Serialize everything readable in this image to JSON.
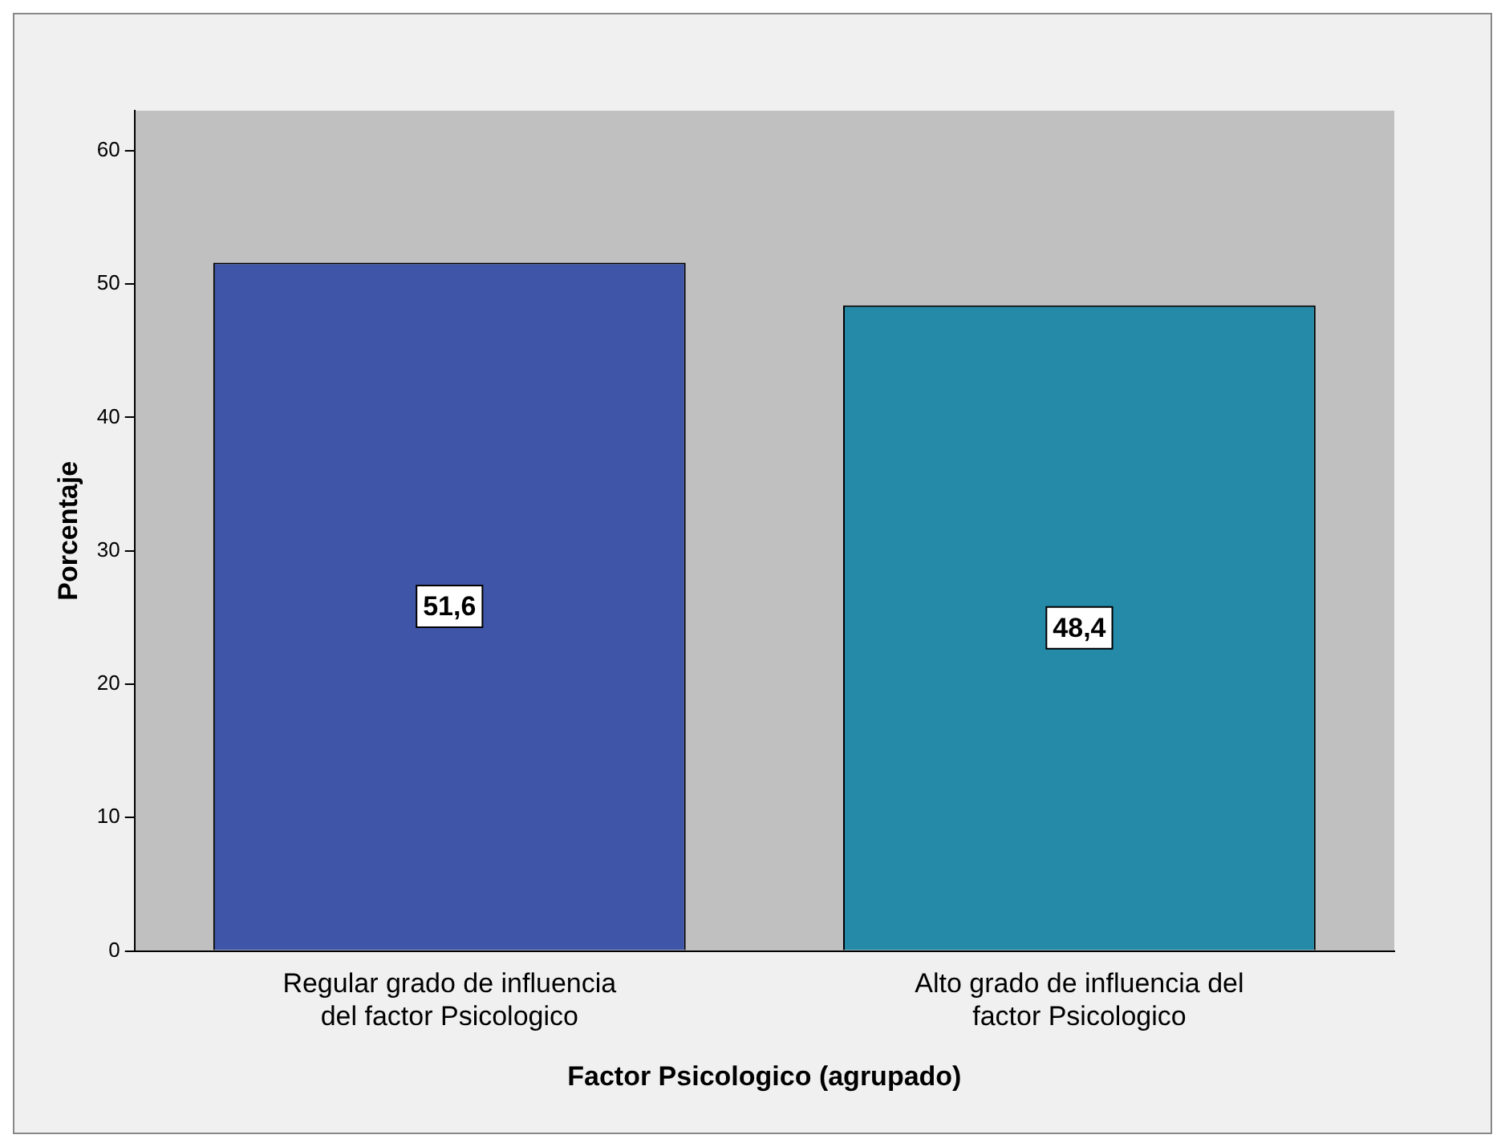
{
  "chart_data": {
    "type": "bar",
    "xlabel": "Factor Psicologico (agrupado)",
    "ylabel": "Porcentaje",
    "categories": [
      "Regular grado de influencia del factor Psicologico",
      "Alto grado de influencia del factor Psicologico"
    ],
    "values": [
      51.6,
      48.4
    ],
    "colors": [
      "#3f56a8",
      "#258aa8"
    ],
    "value_labels": [
      "51,6",
      "48,4"
    ],
    "ylim": [
      0,
      63
    ],
    "yticks": [
      0,
      10,
      20,
      30,
      40,
      50,
      60
    ]
  }
}
